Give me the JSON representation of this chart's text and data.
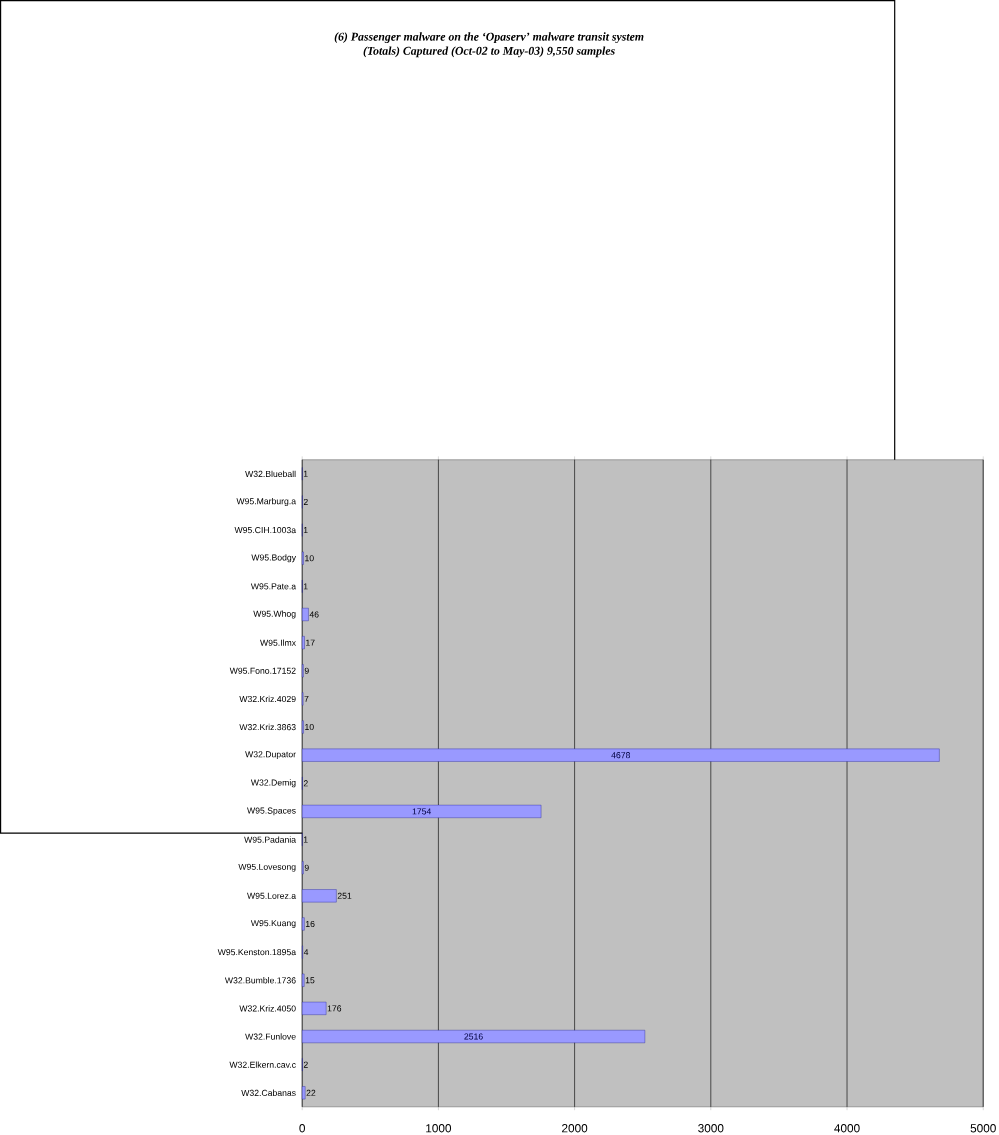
{
  "chart_data": {
    "type": "bar",
    "orientation": "horizontal",
    "title": "(6) Passenger malware on the ‘Opaserv’ malware transit system",
    "subtitle": "(Totals) Captured (Oct-02 to May-03) 9,550 samples",
    "categories": [
      "W32.Blueball",
      "W95.Marburg.a",
      "W95.CIH.1003a",
      "W95.Bodgy",
      "W95.Pate.a",
      "W95.Whog",
      "W95.Ilmx",
      "W95.Fono.17152",
      "W32.Kriz.4029",
      "W32.Kriz.3863",
      "W32.Dupator",
      "W32.Demig",
      "W95.Spaces",
      "W95.Padania",
      "W95.Lovesong",
      "W95.Lorez.a",
      "W95.Kuang",
      "W95.Kenston.1895a",
      "W32.Bumble.1736",
      "W32.Kriz.4050",
      "W32.Funlove",
      "W32.Elkern.cav.c",
      "W32.Cabanas"
    ],
    "values": [
      1,
      2,
      1,
      10,
      1,
      46,
      17,
      9,
      7,
      10,
      4678,
      2,
      1754,
      1,
      9,
      251,
      16,
      4,
      15,
      176,
      2516,
      2,
      22
    ],
    "color": "#9999ff",
    "data_labels": true,
    "xlim": [
      0,
      5000
    ],
    "xticks": [
      0,
      1000,
      2000,
      3000,
      4000,
      5000
    ],
    "grid": "x"
  }
}
